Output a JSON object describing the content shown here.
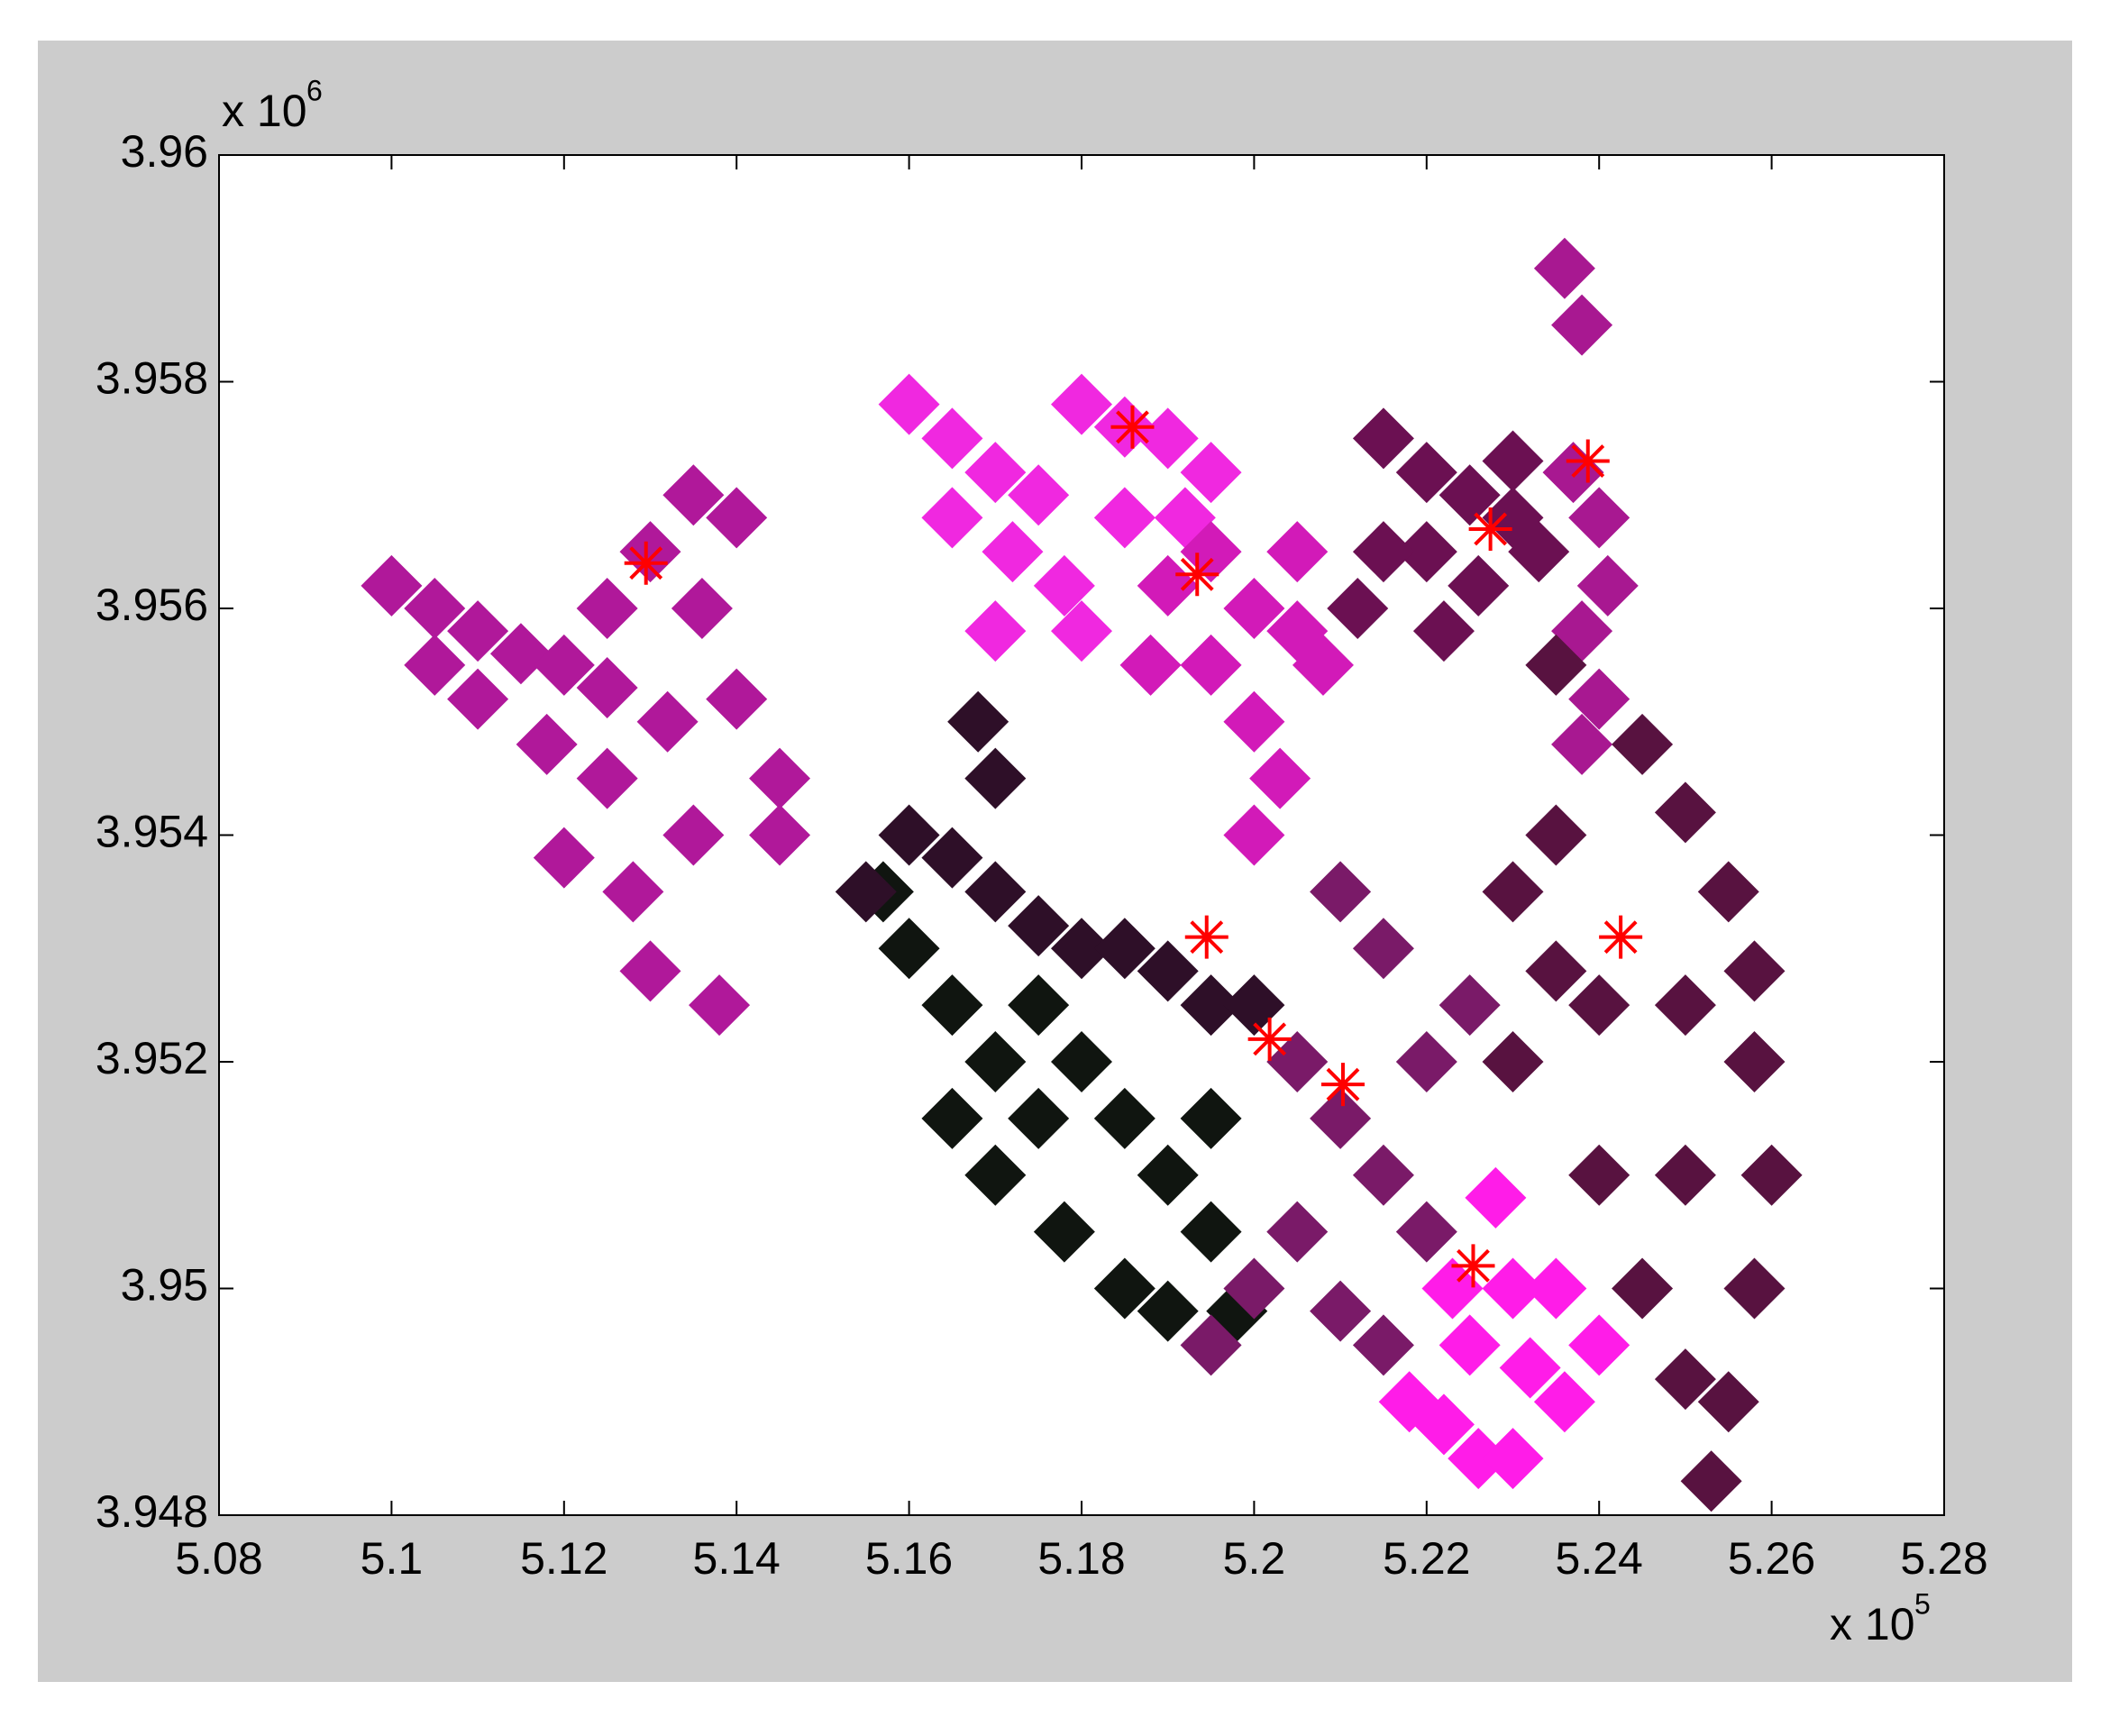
{
  "chart_data": {
    "type": "scatter",
    "xlim": [
      5.08,
      5.28
    ],
    "ylim": [
      3.948,
      3.96
    ],
    "xticks": [
      5.08,
      5.1,
      5.12,
      5.14,
      5.16,
      5.18,
      5.2,
      5.22,
      5.24,
      5.26,
      5.28
    ],
    "yticks": [
      3.948,
      3.95,
      3.952,
      3.954,
      3.956,
      3.958,
      3.96
    ],
    "x_multiplier": {
      "text": "x 10",
      "power": "5"
    },
    "y_multiplier": {
      "text": "x 10",
      "power": "6"
    },
    "grid": false,
    "series": [
      {
        "marker": "diamond",
        "color": "#b0189a",
        "x": [
          5.1,
          5.105,
          5.11,
          5.115,
          5.12,
          5.125,
          5.13,
          5.135,
          5.14,
          5.11,
          5.118,
          5.125,
          5.132,
          5.14,
          5.145,
          5.12,
          5.128,
          5.135,
          5.13,
          5.138,
          5.145,
          5.125,
          5.105,
          5.136
        ],
        "y": [
          3.9562,
          3.956,
          3.9558,
          3.9556,
          3.9555,
          3.956,
          3.9565,
          3.957,
          3.9568,
          3.9552,
          3.9548,
          3.9545,
          3.955,
          3.9552,
          3.9545,
          3.9538,
          3.9535,
          3.954,
          3.9528,
          3.9525,
          3.954,
          3.9553,
          3.9555,
          3.956
        ]
      },
      {
        "marker": "diamond",
        "color": "#f028e0",
        "x": [
          5.16,
          5.165,
          5.17,
          5.175,
          5.18,
          5.185,
          5.19,
          5.195,
          5.165,
          5.172,
          5.178,
          5.185,
          5.192,
          5.18,
          5.17
        ],
        "y": [
          3.9578,
          3.9575,
          3.9572,
          3.957,
          3.9578,
          3.9576,
          3.9575,
          3.9572,
          3.9568,
          3.9565,
          3.9562,
          3.9568,
          3.9568,
          3.9558,
          3.9558
        ]
      },
      {
        "marker": "diamond",
        "color": "#d21ab8",
        "x": [
          5.19,
          5.195,
          5.2,
          5.205,
          5.208,
          5.195,
          5.2,
          5.203,
          5.188,
          5.2,
          5.205
        ],
        "y": [
          3.9562,
          3.9565,
          3.956,
          3.9558,
          3.9555,
          3.9555,
          3.955,
          3.9545,
          3.9555,
          3.954,
          3.9565
        ]
      },
      {
        "marker": "diamond",
        "color": "#6b1052",
        "x": [
          5.215,
          5.22,
          5.225,
          5.23,
          5.233,
          5.22,
          5.226,
          5.215,
          5.222,
          5.23,
          5.212
        ],
        "y": [
          3.9575,
          3.9572,
          3.957,
          3.9568,
          3.9565,
          3.9565,
          3.9562,
          3.9565,
          3.9558,
          3.9573,
          3.956
        ]
      },
      {
        "marker": "diamond",
        "color": "#a81891",
        "x": [
          5.237,
          5.24,
          5.241,
          5.238,
          5.24,
          5.238,
          5.236,
          5.238
        ],
        "y": [
          3.9572,
          3.9568,
          3.9562,
          3.9558,
          3.9552,
          3.9548,
          3.959,
          3.9585
        ]
      },
      {
        "marker": "diamond",
        "color": "#581240",
        "x": [
          5.235,
          5.245,
          5.25,
          5.255,
          5.258,
          5.235,
          5.24,
          5.25,
          5.258,
          5.26,
          5.258,
          5.255,
          5.25,
          5.245,
          5.24,
          5.25,
          5.253,
          5.23,
          5.23,
          5.235
        ],
        "y": [
          3.9555,
          3.9548,
          3.9542,
          3.9535,
          3.9528,
          3.9528,
          3.9525,
          3.9525,
          3.952,
          3.951,
          3.95,
          3.949,
          3.9492,
          3.95,
          3.951,
          3.951,
          3.9483,
          3.952,
          3.9535,
          3.954
        ]
      },
      {
        "marker": "diamond",
        "color": "#101510",
        "x": [
          5.16,
          5.165,
          5.17,
          5.175,
          5.18,
          5.185,
          5.19,
          5.195,
          5.17,
          5.178,
          5.185,
          5.19,
          5.175,
          5.165,
          5.195,
          5.198,
          5.157
        ],
        "y": [
          3.953,
          3.9525,
          3.952,
          3.9515,
          3.952,
          3.9515,
          3.951,
          3.9505,
          3.951,
          3.9505,
          3.95,
          3.9498,
          3.9525,
          3.9515,
          3.9515,
          3.9498,
          3.9535
        ]
      },
      {
        "marker": "diamond",
        "color": "#2e0f28",
        "x": [
          5.155,
          5.16,
          5.165,
          5.17,
          5.175,
          5.18,
          5.185,
          5.19,
          5.195,
          5.2,
          5.17,
          5.168
        ],
        "y": [
          3.9535,
          3.954,
          3.9538,
          3.9535,
          3.9532,
          3.953,
          3.953,
          3.9528,
          3.9525,
          3.9525,
          3.9545,
          3.955
        ]
      },
      {
        "marker": "diamond",
        "color": "#7a1a68",
        "x": [
          5.205,
          5.21,
          5.215,
          5.22,
          5.205,
          5.21,
          5.215,
          5.22,
          5.225,
          5.215,
          5.21,
          5.2,
          5.195
        ],
        "y": [
          3.952,
          3.9515,
          3.951,
          3.9505,
          3.9505,
          3.9498,
          3.9495,
          3.952,
          3.9525,
          3.953,
          3.9535,
          3.95,
          3.9495
        ]
      },
      {
        "marker": "diamond",
        "color": "#ff1ce8",
        "x": [
          5.218,
          5.222,
          5.226,
          5.23,
          5.225,
          5.23,
          5.235,
          5.228,
          5.223,
          5.236,
          5.24,
          5.232
        ],
        "y": [
          3.949,
          3.9488,
          3.9485,
          3.9485,
          3.9495,
          3.95,
          3.95,
          3.9508,
          3.95,
          3.949,
          3.9495,
          3.9493
        ]
      },
      {
        "marker": "star",
        "color": "#ff0000",
        "x": [
          5.1295,
          5.1859,
          5.1934,
          5.2387,
          5.2274,
          5.1945,
          5.2425,
          5.2018,
          5.2103,
          5.2254
        ],
        "y": [
          3.9564,
          3.9576,
          3.9563,
          3.9573,
          3.9567,
          3.9531,
          3.9531,
          3.9522,
          3.9518,
          3.9502
        ]
      }
    ]
  }
}
